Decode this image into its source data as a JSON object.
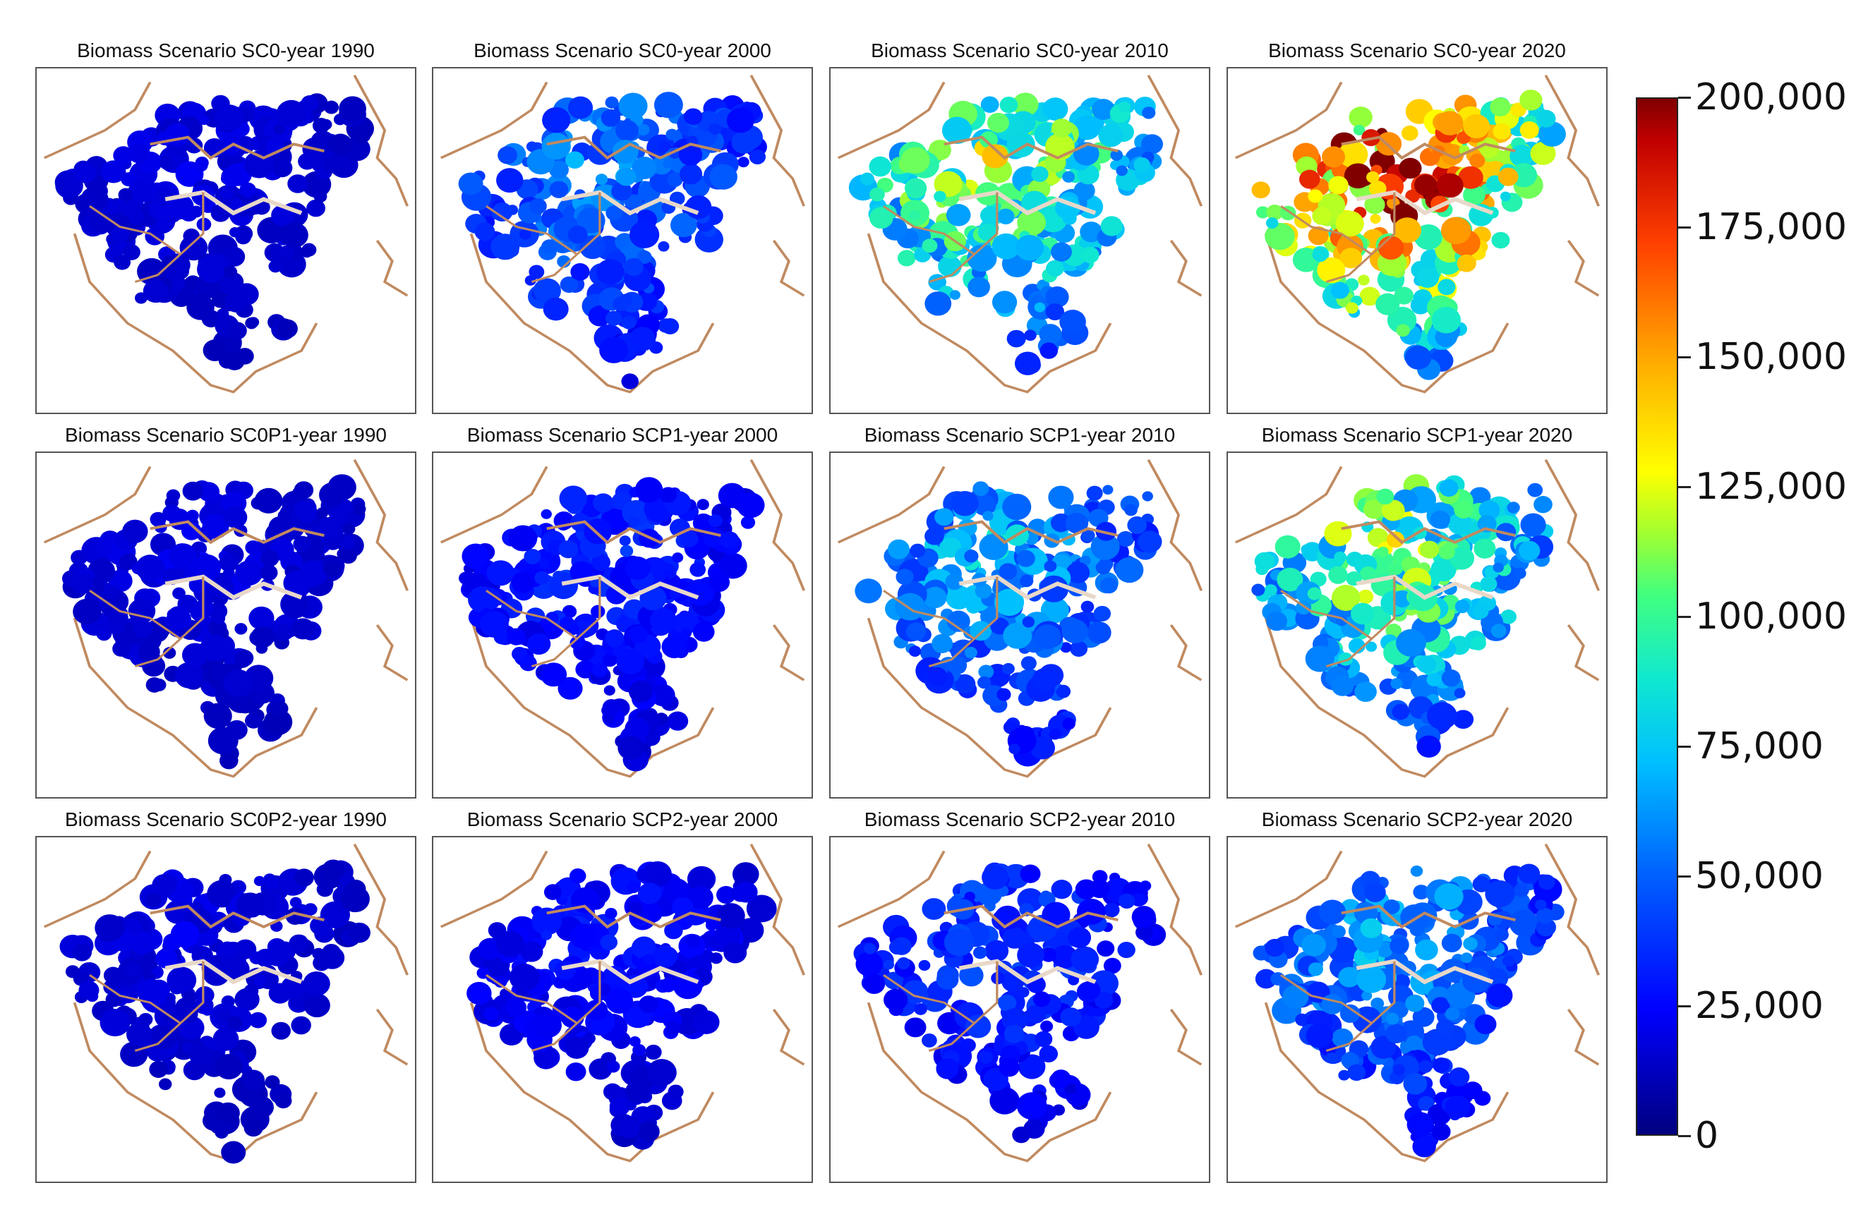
{
  "panels": [
    {
      "title": "Biomass Scenario SC0-year 1990",
      "intensity": 0.05
    },
    {
      "title": "Biomass Scenario SC0-year 2000",
      "intensity": 0.22
    },
    {
      "title": "Biomass Scenario SC0-year 2010",
      "intensity": 0.48
    },
    {
      "title": "Biomass Scenario SC0-year 2020",
      "intensity": 0.78
    },
    {
      "title": "Biomass Scenario SC0P1-year 1990",
      "intensity": 0.05
    },
    {
      "title": "Biomass Scenario SCP1-year 2000",
      "intensity": 0.12
    },
    {
      "title": "Biomass Scenario SCP1-year 2010",
      "intensity": 0.28
    },
    {
      "title": "Biomass Scenario SCP1-year 2020",
      "intensity": 0.45
    },
    {
      "title": "Biomass Scenario SC0P2-year 1990",
      "intensity": 0.05
    },
    {
      "title": "Biomass Scenario SCP2-year 2000",
      "intensity": 0.09
    },
    {
      "title": "Biomass Scenario SCP2-year 2010",
      "intensity": 0.15
    },
    {
      "title": "Biomass Scenario SCP2-year 2020",
      "intensity": 0.26
    }
  ],
  "colorbar": {
    "min": 0,
    "max": 200000,
    "ticks": [
      "0",
      "25,000",
      "50,000",
      "75,000",
      "100,000",
      "125,000",
      "150,000",
      "175,000",
      "200,000"
    ]
  },
  "colors": {
    "boundary": "#c08a60",
    "low": "#00007f",
    "high": "#800000"
  }
}
